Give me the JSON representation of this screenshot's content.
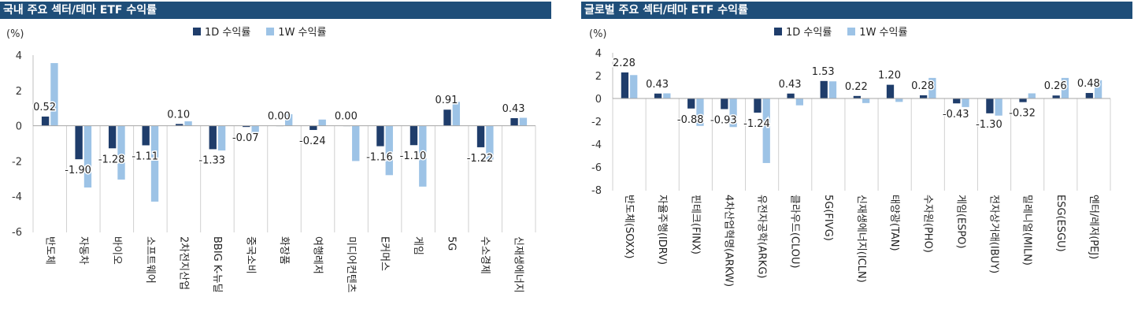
{
  "chart_data": [
    {
      "type": "bar",
      "title": "국내 주요 섹터/테마 ETF 수익률",
      "unit": "(%)",
      "ylim": [
        -6,
        4
      ],
      "yticks": [
        -6,
        -4,
        -2,
        0,
        2,
        4
      ],
      "categories": [
        "반도체",
        "자동차",
        "바이오",
        "소프트웨어",
        "2차전지산업",
        "BBIG K-뉴딜",
        "중국소비",
        "화장품",
        "여행레저",
        "미디어컨텐츠",
        "E커머스",
        "게임",
        "5G",
        "수소경제",
        "신재생에너지"
      ],
      "series": [
        {
          "name": "1D 수익률",
          "color": "#1f3d6b",
          "values": [
            0.52,
            -1.9,
            -1.28,
            -1.11,
            0.1,
            -1.33,
            -0.07,
            0.0,
            -0.24,
            0.0,
            -1.16,
            -1.1,
            0.91,
            -1.22,
            0.43
          ]
        },
        {
          "name": "1W 수익률",
          "color": "#9dc3e6",
          "values": [
            3.55,
            -3.5,
            -3.05,
            -4.3,
            0.25,
            -1.4,
            -0.45,
            0.65,
            0.35,
            -2.0,
            -2.8,
            -3.45,
            1.35,
            -2.0,
            0.45
          ]
        }
      ],
      "labels": [
        "0.52",
        "-1.90",
        "-1.28",
        "-1.11",
        "0.10",
        "-1.33",
        "-0.07",
        "0.00",
        "-0.24",
        "0.00",
        "-1.16",
        "-1.10",
        "0.91",
        "-1.22",
        "0.43"
      ],
      "legend_position": "top"
    },
    {
      "type": "bar",
      "title": "글로벌 주요 섹터/테마 ETF 수익률",
      "unit": "(%)",
      "ylim": [
        -8,
        4
      ],
      "yticks": [
        -8,
        -6,
        -4,
        -2,
        0,
        2,
        4
      ],
      "categories": [
        "반도체(SOXX)",
        "자율주행(IDRV)",
        "핀테크(FINX)",
        "4차산업혁명(ARKW)",
        "유전자공학(ARKG)",
        "클라우드(CLOU)",
        "5G(FIVG)",
        "신재생에너지(ICLN)",
        "태양광(TAN)",
        "수자원(PHO)",
        "게임(ESPO)",
        "전자상거래(IBUY)",
        "밀레니얼(MILN)",
        "ESG(ESGU)",
        "엔터/레저(PEJ)"
      ],
      "series": [
        {
          "name": "1D 수익률",
          "color": "#1f3d6b",
          "values": [
            2.28,
            0.43,
            -0.88,
            -0.93,
            -1.24,
            0.43,
            1.53,
            0.22,
            1.2,
            0.28,
            -0.43,
            -1.3,
            -0.32,
            0.26,
            0.48
          ]
        },
        {
          "name": "1W 수익률",
          "color": "#9dc3e6",
          "values": [
            2.05,
            0.45,
            -2.4,
            -2.5,
            -5.65,
            -0.6,
            1.5,
            -0.4,
            -0.3,
            1.8,
            -0.75,
            -1.5,
            0.45,
            1.8,
            1.6
          ]
        }
      ],
      "labels": [
        "2.28",
        "0.43",
        "-0.88",
        "-0.93",
        "-1.24",
        "0.43",
        "1.53",
        "0.22",
        "1.20",
        "0.28",
        "-0.43",
        "-1.30",
        "-0.32",
        "0.26",
        "0.48"
      ],
      "legend_position": "top"
    }
  ]
}
